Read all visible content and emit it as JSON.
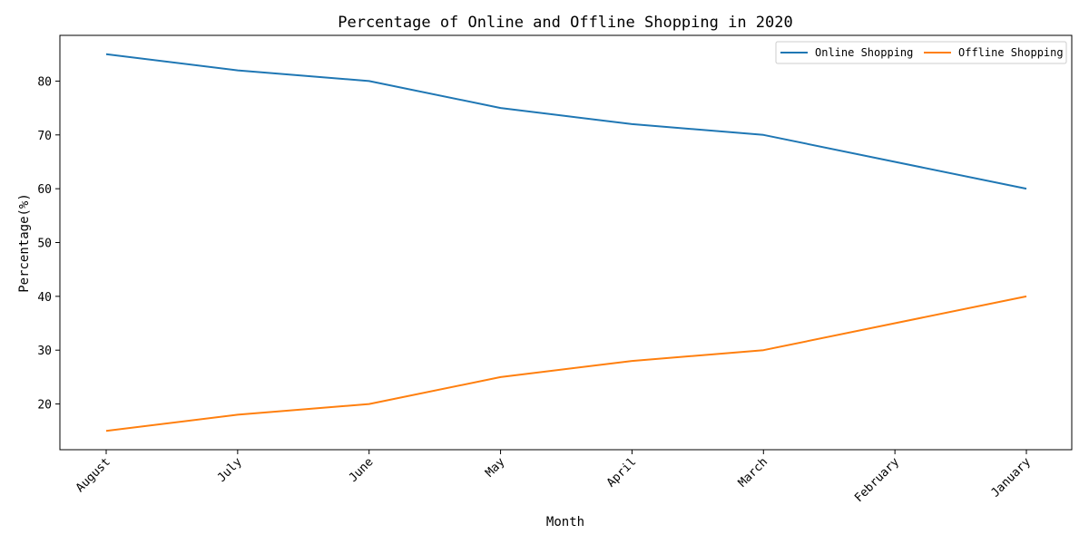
{
  "chart_data": {
    "type": "line",
    "title": "Percentage of Online and Offline Shopping in 2020",
    "xlabel": "Month",
    "ylabel": "Percentage(%)",
    "categories": [
      "August",
      "July",
      "June",
      "May",
      "April",
      "March",
      "February",
      "January"
    ],
    "series": [
      {
        "name": "Online Shopping",
        "color": "#1f77b4",
        "values": [
          85,
          82,
          80,
          75,
          72,
          70,
          65,
          60
        ]
      },
      {
        "name": "Offline Shopping",
        "color": "#ff7f0e",
        "values": [
          15,
          18,
          20,
          25,
          28,
          30,
          35,
          40
        ]
      }
    ],
    "ylim": [
      11.5,
      88.5
    ],
    "yticks": [
      20,
      30,
      40,
      50,
      60,
      70,
      80
    ],
    "grid": false,
    "legend": "top-right"
  }
}
